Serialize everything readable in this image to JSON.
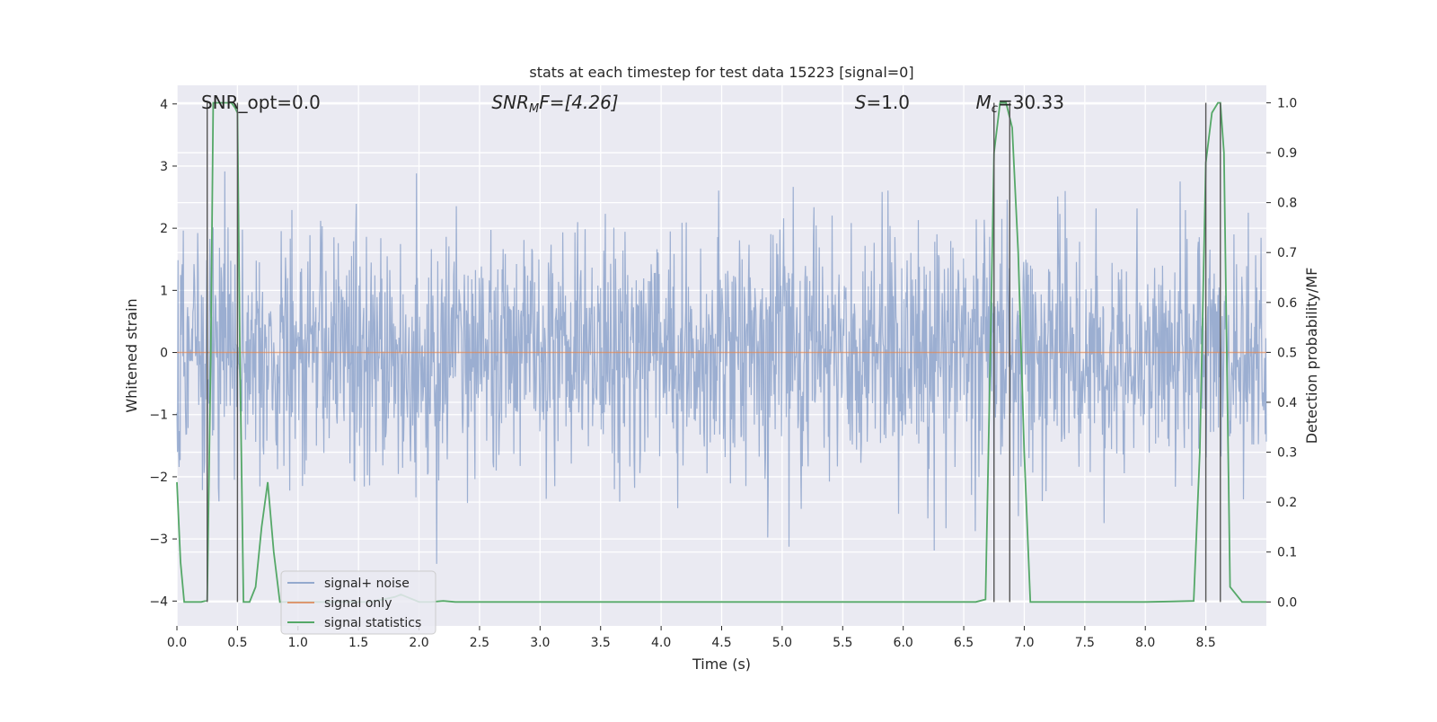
{
  "chart_data": {
    "type": "line",
    "title": "stats at each timestep for test data 15223 [signal=0]",
    "xlabel": "Time (s)",
    "ylabel": "Whitened strain",
    "ylabel_right": "Detection probability/MF",
    "xlim": [
      0,
      9
    ],
    "ylim": [
      -4.4,
      4.3
    ],
    "ylim_right": [
      -0.048,
      1.035
    ],
    "x_ticks": [
      "0.0",
      "0.5",
      "1.0",
      "1.5",
      "2.0",
      "2.5",
      "3.0",
      "3.5",
      "4.0",
      "4.5",
      "5.0",
      "5.5",
      "6.0",
      "6.5",
      "7.0",
      "7.5",
      "8.0",
      "8.5"
    ],
    "x_tick_values": [
      0,
      0.5,
      1,
      1.5,
      2,
      2.5,
      3,
      3.5,
      4,
      4.5,
      5,
      5.5,
      6,
      6.5,
      7,
      7.5,
      8,
      8.5
    ],
    "y_ticks": [
      "4",
      "3",
      "2",
      "1",
      "0",
      "−1",
      "−2",
      "−3",
      "−4"
    ],
    "y_tick_values": [
      4,
      3,
      2,
      1,
      0,
      -1,
      -2,
      -3,
      -4
    ],
    "y2_ticks": [
      "1.0",
      "0.9",
      "0.8",
      "0.7",
      "0.6",
      "0.5",
      "0.4",
      "0.3",
      "0.2",
      "0.1",
      "0.0"
    ],
    "y2_tick_values": [
      1.0,
      0.9,
      0.8,
      0.7,
      0.6,
      0.5,
      0.4,
      0.3,
      0.2,
      0.1,
      0.0
    ],
    "annotations": [
      {
        "id": "snr_opt",
        "prefix": "SNR_opt=0.0",
        "sub": "",
        "suffix": "",
        "x": 0.2
      },
      {
        "id": "snr_mf",
        "prefix": "SNR",
        "sub": "M",
        "suffix": "F=[4.26]",
        "x": 2.6
      },
      {
        "id": "s_val",
        "prefix": "S",
        "sub": "",
        "suffix": "=1.0",
        "x": 5.6
      },
      {
        "id": "mc_val",
        "prefix": "M",
        "sub": "c",
        "suffix": "=30.33",
        "x": 6.6
      }
    ],
    "legend": [
      "signal+ noise",
      "signal only",
      "signal statistics"
    ],
    "legend_position": "lower-left",
    "colors": {
      "noise": "#4c72b0",
      "signal": "#dd8452",
      "stats": "#55a868",
      "vline": "#555555",
      "bg": "#eaeaf2",
      "grid": "#ffffff"
    },
    "series": [
      {
        "name": "signal statistics",
        "axis": "right",
        "x": [
          0.0,
          0.03,
          0.06,
          0.1,
          0.15,
          0.2,
          0.25,
          0.28,
          0.3,
          0.32,
          0.4,
          0.45,
          0.48,
          0.5,
          0.52,
          0.55,
          0.6,
          0.65,
          0.7,
          0.75,
          0.8,
          0.85,
          0.9,
          1.0,
          1.2,
          1.4,
          1.6,
          1.8,
          1.85,
          1.9,
          1.95,
          2.0,
          2.1,
          2.2,
          2.3,
          3,
          4,
          5,
          6,
          6.5,
          6.6,
          6.68,
          6.72,
          6.75,
          6.8,
          6.85,
          6.9,
          6.95,
          7.0,
          7.05,
          7.2,
          8,
          8.2,
          8.4,
          8.45,
          8.5,
          8.55,
          8.6,
          8.62,
          8.65,
          8.7,
          8.8,
          9.0
        ],
        "y": [
          0.24,
          0.08,
          0.0,
          0.0,
          0.0,
          0.0,
          0.003,
          0.5,
          1.0,
          1.0,
          1.0,
          1.0,
          0.99,
          0.98,
          0.5,
          0.0,
          0.0,
          0.03,
          0.15,
          0.24,
          0.1,
          0.0,
          0.0,
          0.0,
          0.0,
          0.0,
          0.0,
          0.01,
          0.015,
          0.01,
          0.005,
          0.0,
          0.0,
          0.002,
          0.0,
          0.0,
          0.0,
          0.0,
          0.0,
          0.0,
          0.0,
          0.005,
          0.5,
          0.9,
          1.0,
          1.0,
          0.95,
          0.7,
          0.3,
          0.0,
          0.0,
          0.0,
          0.001,
          0.002,
          0.3,
          0.88,
          0.98,
          1.0,
          1.0,
          0.9,
          0.03,
          0.0,
          0.0
        ]
      },
      {
        "name": "signal only",
        "axis": "left",
        "x": [
          0,
          9
        ],
        "y": [
          0,
          0
        ]
      },
      {
        "name": "signal+ noise",
        "axis": "left",
        "x_range": [
          0,
          9
        ],
        "samples": 2048,
        "sigma": 0.95,
        "ylim_clip": [
          -3.95,
          3.8
        ]
      }
    ],
    "vertical_lines": [
      0.25,
      0.5,
      6.75,
      6.88,
      8.5,
      8.62
    ]
  }
}
